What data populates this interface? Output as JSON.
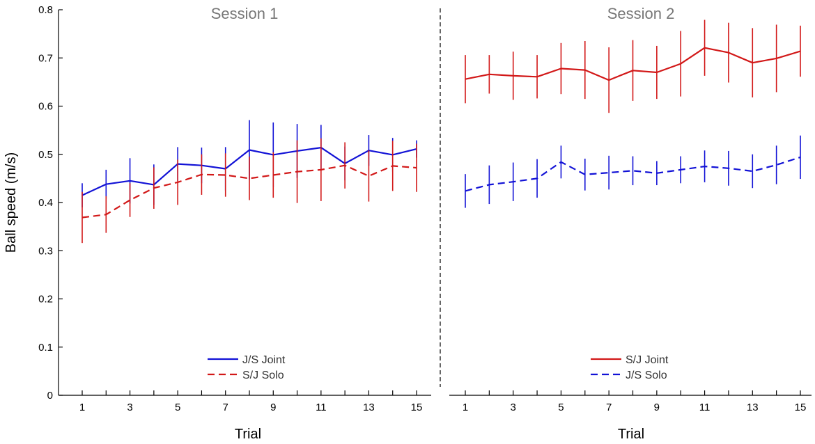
{
  "colors": {
    "blue": "#1212d6",
    "red": "#d21818",
    "axis": "#000000",
    "divider": "#000000"
  },
  "chart_data": [
    {
      "type": "line",
      "title": "Session 1",
      "xlabel": "Trial",
      "ylabel": "Ball speed (m/s)",
      "ylim": [
        0,
        0.8
      ],
      "xlim": [
        0,
        16
      ],
      "x": [
        1,
        2,
        3,
        4,
        5,
        6,
        7,
        8,
        9,
        10,
        11,
        12,
        13,
        14,
        15
      ],
      "yticks": [
        "0",
        "0.1",
        "0.2",
        "0.3",
        "0.4",
        "0.5",
        "0.6",
        "0.7",
        "0.8"
      ],
      "xticks": [
        "1",
        "3",
        "5",
        "7",
        "9",
        "11",
        "13",
        "15"
      ],
      "legend_position": "bottom-center",
      "series": [
        {
          "name": "J/S Joint",
          "style": "solid",
          "color": "#1212d6",
          "values": [
            0.415,
            0.438,
            0.445,
            0.437,
            0.48,
            0.477,
            0.47,
            0.509,
            0.499,
            0.507,
            0.514,
            0.481,
            0.508,
            0.499,
            0.511
          ],
          "errors": [
            0.025,
            0.03,
            0.047,
            0.042,
            0.035,
            0.037,
            0.045,
            0.062,
            0.067,
            0.056,
            0.047,
            0.035,
            0.032,
            0.035,
            0.018
          ]
        },
        {
          "name": "S/J Solo",
          "style": "dashed",
          "color": "#d21818",
          "values": [
            0.369,
            0.375,
            0.405,
            0.43,
            0.442,
            0.458,
            0.457,
            0.45,
            0.457,
            0.464,
            0.468,
            0.477,
            0.455,
            0.476,
            0.472
          ],
          "errors": [
            0.053,
            0.038,
            0.035,
            0.043,
            0.047,
            0.042,
            0.045,
            0.045,
            0.047,
            0.065,
            0.065,
            0.048,
            0.053,
            0.052,
            0.05
          ]
        }
      ]
    },
    {
      "type": "line",
      "title": "Session 2",
      "xlabel": "Trial",
      "ylabel": "",
      "ylim": [
        0,
        0.8
      ],
      "xlim": [
        0,
        16
      ],
      "x": [
        1,
        2,
        3,
        4,
        5,
        6,
        7,
        8,
        9,
        10,
        11,
        12,
        13,
        14,
        15
      ],
      "xticks": [
        "1",
        "3",
        "5",
        "7",
        "9",
        "11",
        "13",
        "15"
      ],
      "legend_position": "bottom-center",
      "series": [
        {
          "name": "S/J Joint",
          "style": "solid",
          "color": "#d21818",
          "values": [
            0.656,
            0.666,
            0.663,
            0.661,
            0.678,
            0.675,
            0.654,
            0.674,
            0.67,
            0.688,
            0.721,
            0.711,
            0.69,
            0.699,
            0.714
          ],
          "errors": [
            0.05,
            0.04,
            0.05,
            0.045,
            0.053,
            0.06,
            0.068,
            0.063,
            0.055,
            0.068,
            0.058,
            0.062,
            0.072,
            0.07,
            0.053
          ]
        },
        {
          "name": "J/S Solo",
          "style": "dashed",
          "color": "#1212d6",
          "values": [
            0.424,
            0.437,
            0.443,
            0.45,
            0.484,
            0.458,
            0.462,
            0.466,
            0.461,
            0.468,
            0.475,
            0.471,
            0.465,
            0.478,
            0.494
          ],
          "errors": [
            0.035,
            0.04,
            0.04,
            0.04,
            0.034,
            0.033,
            0.035,
            0.03,
            0.025,
            0.028,
            0.033,
            0.036,
            0.035,
            0.04,
            0.045
          ]
        }
      ]
    }
  ]
}
